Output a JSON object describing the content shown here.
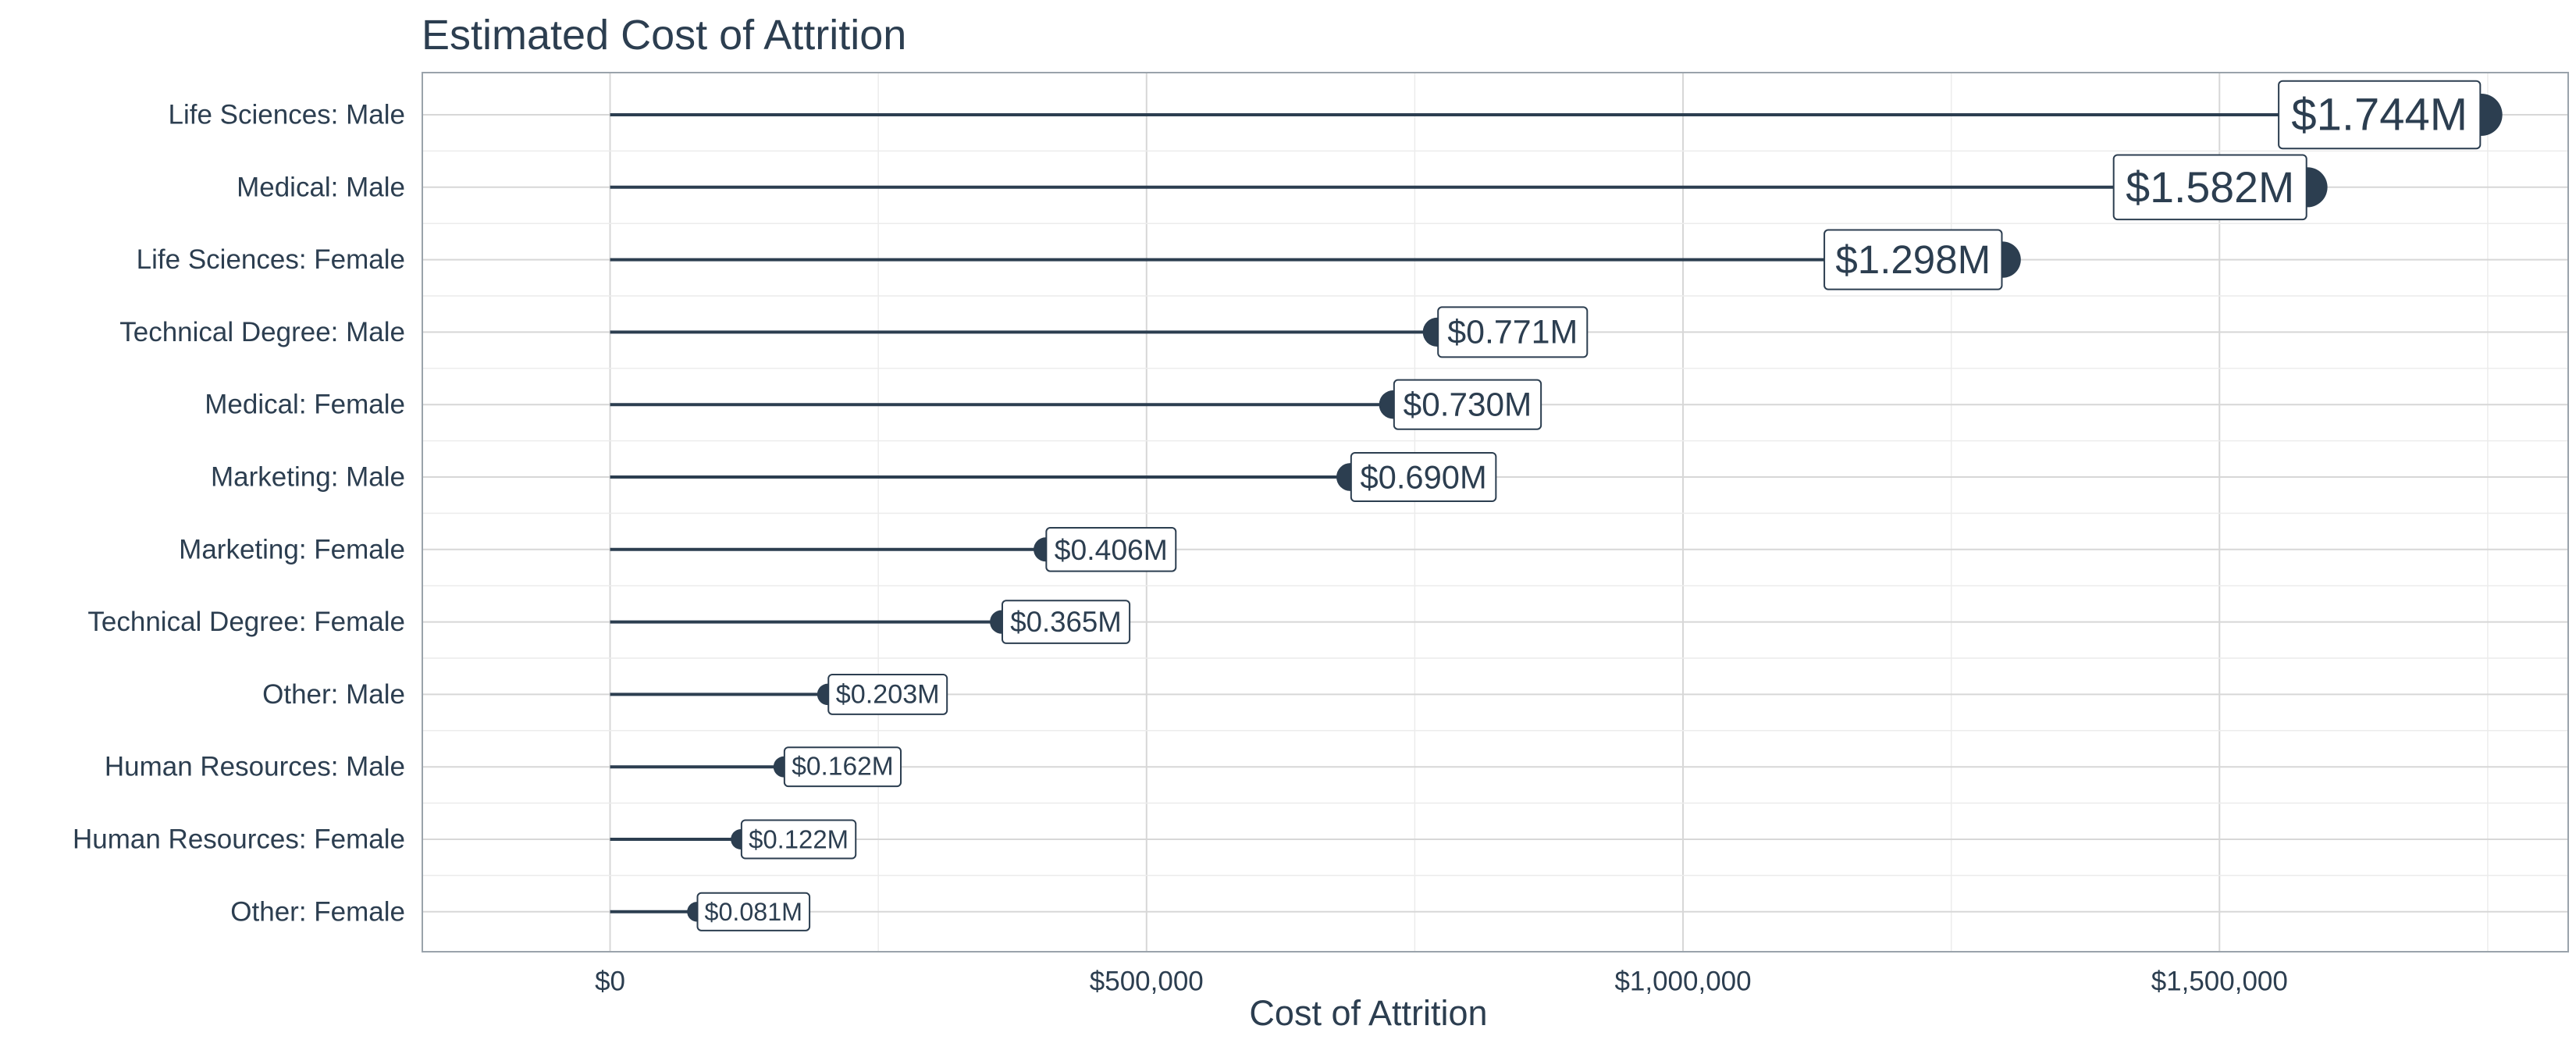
{
  "chart_data": {
    "type": "lollipop",
    "title": "Estimated Cost of Attrition",
    "xlabel": "Cost of Attrition",
    "ylabel": "",
    "xlim": [
      -175000,
      1825000
    ],
    "x_ticks": [
      0,
      500000,
      1000000,
      1500000
    ],
    "x_tick_labels": [
      "$0",
      "$500,000",
      "$1,000,000",
      "$1,500,000"
    ],
    "grid": true,
    "legend": "none",
    "color": "#2c3e50",
    "categories": [
      "Life Sciences: Male",
      "Medical: Male",
      "Life Sciences: Female",
      "Technical Degree: Male",
      "Medical: Female",
      "Marketing: Male",
      "Marketing: Female",
      "Technical Degree: Female",
      "Other: Male",
      "Human Resources: Male",
      "Human Resources: Female",
      "Other: Female"
    ],
    "values": [
      1744000,
      1582000,
      1298000,
      771000,
      730000,
      690000,
      406000,
      365000,
      203000,
      162000,
      122000,
      81000
    ],
    "data_labels": [
      "$1.744M",
      "$1.582M",
      "$1.298M",
      "$0.771M",
      "$0.730M",
      "$0.690M",
      "$0.406M",
      "$0.365M",
      "$0.203M",
      "$0.162M",
      "$0.122M",
      "$0.081M"
    ]
  }
}
